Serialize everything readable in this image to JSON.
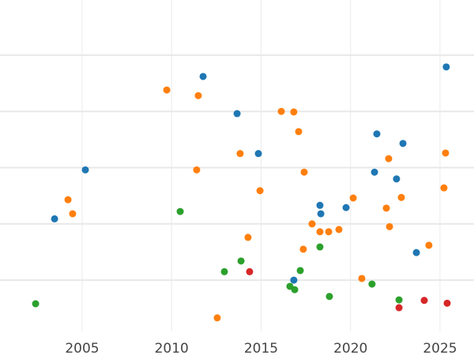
{
  "chart_data": {
    "type": "scatter",
    "title": "",
    "xlabel": "",
    "ylabel": "",
    "xlim": [
      2000.41,
      2026.9
    ],
    "ylim": [
      -0.91,
      4.98
    ],
    "x_ticks": [
      2005,
      2010,
      2015,
      2020,
      2025
    ],
    "x_tick_labels": [
      "2005",
      "2010",
      "2015",
      "2020",
      "2025"
    ],
    "y_gridlines": [
      0,
      1,
      2,
      3,
      4
    ],
    "y_ticks_visible": false,
    "grid": true,
    "legend": "none",
    "series": [
      {
        "name": "blue",
        "color": "#1f77b4",
        "points": [
          [
            2011.76,
            3.62
          ],
          [
            2025.35,
            3.79
          ],
          [
            2013.66,
            2.96
          ],
          [
            2014.85,
            2.25
          ],
          [
            2005.18,
            1.96
          ],
          [
            2003.46,
            1.09
          ],
          [
            2021.47,
            2.6
          ],
          [
            2022.93,
            2.43
          ],
          [
            2021.34,
            1.92
          ],
          [
            2022.57,
            1.8
          ],
          [
            2018.29,
            1.33
          ],
          [
            2018.34,
            1.18
          ],
          [
            2019.75,
            1.29
          ],
          [
            2023.68,
            0.49
          ],
          [
            2016.83,
            0.0
          ]
        ]
      },
      {
        "name": "orange",
        "color": "#ff7f0e",
        "points": [
          [
            2009.73,
            3.38
          ],
          [
            2011.49,
            3.28
          ],
          [
            2016.13,
            3.0
          ],
          [
            2016.83,
            2.99
          ],
          [
            2017.1,
            2.64
          ],
          [
            2013.83,
            2.25
          ],
          [
            2011.4,
            1.96
          ],
          [
            2017.41,
            1.92
          ],
          [
            2014.94,
            1.59
          ],
          [
            2004.21,
            1.43
          ],
          [
            2004.47,
            1.18
          ],
          [
            2020.15,
            1.46
          ],
          [
            2022.13,
            2.16
          ],
          [
            2025.31,
            2.26
          ],
          [
            2025.22,
            1.64
          ],
          [
            2022.84,
            1.47
          ],
          [
            2022.0,
            1.28
          ],
          [
            2022.18,
            0.95
          ],
          [
            2017.85,
            1.0
          ],
          [
            2018.29,
            0.86
          ],
          [
            2018.78,
            0.86
          ],
          [
            2019.35,
            0.9
          ],
          [
            2014.27,
            0.76
          ],
          [
            2017.36,
            0.55
          ],
          [
            2024.38,
            0.62
          ],
          [
            2020.63,
            0.03
          ],
          [
            2012.55,
            -0.67
          ]
        ]
      },
      {
        "name": "green",
        "color": "#2ca02c",
        "points": [
          [
            2010.48,
            1.22
          ],
          [
            2013.88,
            0.34
          ],
          [
            2012.95,
            0.15
          ],
          [
            2017.19,
            0.17
          ],
          [
            2018.29,
            0.59
          ],
          [
            2016.61,
            -0.11
          ],
          [
            2016.88,
            -0.17
          ],
          [
            2018.82,
            -0.29
          ],
          [
            2021.2,
            -0.07
          ],
          [
            2022.71,
            -0.35
          ],
          [
            2002.4,
            -0.42
          ]
        ]
      },
      {
        "name": "red",
        "color": "#d62728",
        "points": [
          [
            2014.36,
            0.15
          ],
          [
            2022.71,
            -0.49
          ],
          [
            2024.12,
            -0.36
          ],
          [
            2025.4,
            -0.41
          ]
        ]
      }
    ]
  }
}
